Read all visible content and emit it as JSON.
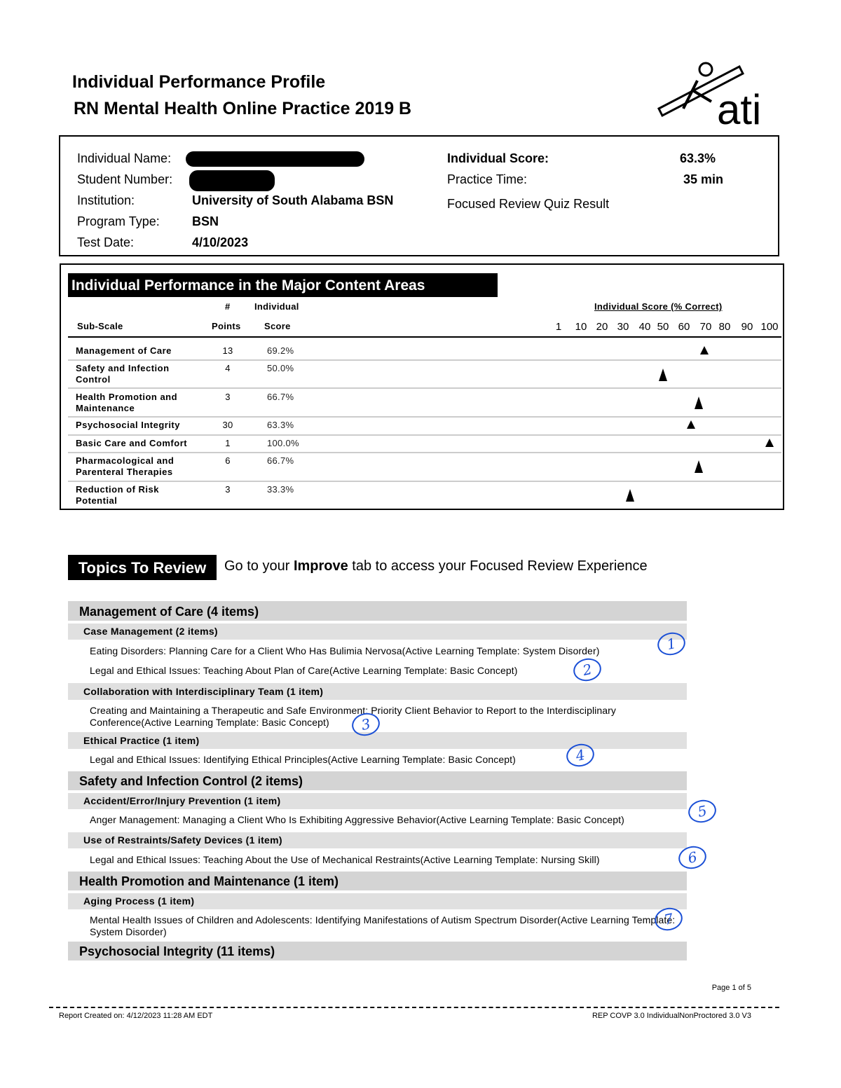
{
  "header": {
    "title": "Individual Performance Profile",
    "subtitle": "RN Mental Health Online Practice 2019 B",
    "logo_text": "ati"
  },
  "info": {
    "name_label": "Individual Name:",
    "student_number_label": "Student Number:",
    "institution_label": "Institution:",
    "institution": "University of South Alabama BSN",
    "program_label": "Program Type:",
    "program": "BSN",
    "date_label": "Test Date:",
    "date": "4/10/2023",
    "score_label": "Individual Score:",
    "score": "63.3%",
    "time_label": "Practice Time:",
    "time": "35 min",
    "focused_label": "Focused Review Quiz Result"
  },
  "performance": {
    "heading": "Individual Performance in the Major Content Areas",
    "col_subscale": "Sub-Scale",
    "col_points_top": "#",
    "col_points": "Points",
    "col_score_top": "Individual",
    "col_score": "Score",
    "scale_title": "Individual Score (% Correct)",
    "ticks": [
      "1",
      "10",
      "20",
      "30",
      "40",
      "50",
      "60",
      "70",
      "80",
      "90",
      "100"
    ],
    "rows": [
      {
        "name": "Management of Care",
        "points": "13",
        "score": "69.2%",
        "value": 69.2
      },
      {
        "name": "Safety and Infection Control",
        "points": "4",
        "score": "50.0%",
        "value": 50.0
      },
      {
        "name": "Health Promotion and Maintenance",
        "points": "3",
        "score": "66.7%",
        "value": 66.7
      },
      {
        "name": "Psychosocial Integrity",
        "points": "30",
        "score": "63.3%",
        "value": 63.3
      },
      {
        "name": "Basic Care and Comfort",
        "points": "1",
        "score": "100.0%",
        "value": 100.0
      },
      {
        "name": "Pharmacological and Parenteral Therapies",
        "points": "6",
        "score": "66.7%",
        "value": 66.7
      },
      {
        "name": "Reduction of Risk Potential",
        "points": "3",
        "score": "33.3%",
        "value": 33.3
      }
    ]
  },
  "topics": {
    "heading": "Topics To Review",
    "instr_pre": "Go to your ",
    "instr_bold": "Improve",
    "instr_post": " tab to access your Focused Review Experience",
    "cat1": "Management of Care (4 items)",
    "sub1": "Case Management (2 items)",
    "item1": "Eating Disorders: Planning Care for a Client Who Has Bulimia Nervosa(Active Learning Template: System Disorder)",
    "item2": "Legal and Ethical Issues: Teaching About Plan of Care(Active Learning Template: Basic Concept)",
    "sub2": "Collaboration with Interdisciplinary Team (1 item)",
    "item3": "Creating and Maintaining a Therapeutic and Safe Environment: Priority Client Behavior to Report to the Interdisciplinary Conference(Active Learning Template: Basic Concept)",
    "sub3": "Ethical Practice (1 item)",
    "item4": "Legal and Ethical Issues: Identifying Ethical Principles(Active Learning Template: Basic Concept)",
    "cat2": "Safety and Infection Control (2 items)",
    "sub4": "Accident/Error/Injury Prevention (1 item)",
    "item5": "Anger Management: Managing a Client Who Is Exhibiting Aggressive Behavior(Active Learning Template: Basic Concept)",
    "sub5": "Use of Restraints/Safety Devices (1 item)",
    "item6": "Legal and Ethical Issues: Teaching About the Use of Mechanical Restraints(Active Learning Template: Nursing Skill)",
    "cat3": "Health Promotion and Maintenance (1 item)",
    "sub6": "Aging Process (1 item)",
    "item7": "Mental Health Issues of Children and Adolescents: Identifying Manifestations of Autism Spectrum Disorder(Active Learning Template: System Disorder)",
    "cat4": "Psychosocial Integrity (11 items)"
  },
  "annotations": [
    "1",
    "2",
    "3",
    "4",
    "5",
    "6",
    "7"
  ],
  "footer": {
    "page": "Page 1 of 5",
    "created": "Report Created on: 4/12/2023 11:28 AM EDT",
    "code": "REP COVP 3.0 IndividualNonProctored 3.0 V3"
  }
}
